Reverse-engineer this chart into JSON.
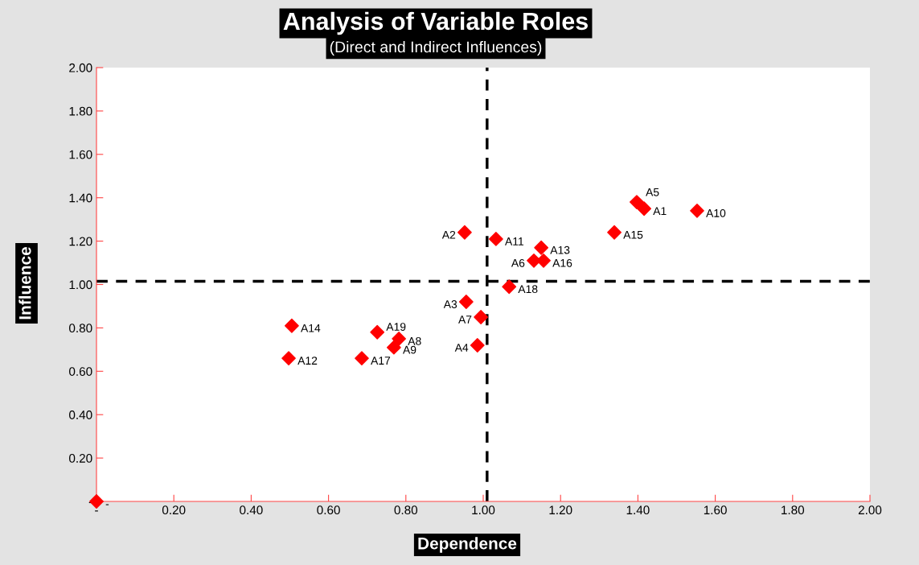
{
  "chart_data": {
    "type": "scatter",
    "title": "Analysis of Variable Roles",
    "subtitle": "(Direct and Indirect Influences)",
    "xlabel": "Dependence",
    "ylabel": "Influence",
    "x": [
      1.397,
      1.416,
      1.553,
      1.339,
      0.952,
      1.033,
      1.15,
      1.131,
      1.156,
      1.067,
      0.956,
      0.994,
      0.985,
      0.505,
      0.497,
      0.726,
      0.782,
      0.769,
      0.686,
      0
    ],
    "series": [
      {
        "color": "#ff0000",
        "values": [
          1.38,
          1.35,
          1.34,
          1.24,
          1.24,
          1.21,
          1.17,
          1.11,
          1.11,
          0.99,
          0.92,
          0.85,
          0.72,
          0.81,
          0.66,
          0.78,
          0.75,
          0.71,
          0.66,
          0
        ],
        "value_labels": [
          "A5",
          "A1",
          "A10",
          "A15",
          "A2",
          "A11",
          "A13",
          "A6",
          "A16",
          "A18",
          "A3",
          "A7",
          "A4",
          "A14",
          "A12",
          "A19",
          "A8",
          "A9",
          "A17",
          "-"
        ]
      }
    ],
    "marker": "diamond",
    "grid": false,
    "legend": false,
    "xlim": [
      0,
      2
    ],
    "ylim": [
      0,
      2
    ],
    "xticks": [
      {
        "value": 0,
        "label": "-"
      },
      {
        "value": 0.2,
        "label": "0.20"
      },
      {
        "value": 0.4,
        "label": "0.40"
      },
      {
        "value": 0.6,
        "label": "0.60"
      },
      {
        "value": 0.8,
        "label": "0.80"
      },
      {
        "value": 1.0,
        "label": "1.00"
      },
      {
        "value": 1.2,
        "label": "1.20"
      },
      {
        "value": 1.4,
        "label": "1.40"
      },
      {
        "value": 1.6,
        "label": "1.60"
      },
      {
        "value": 1.8,
        "label": "1.80"
      },
      {
        "value": 2.0,
        "label": "2.00"
      }
    ],
    "yticks": [
      {
        "value": 0,
        "label": "-"
      },
      {
        "value": 0.2,
        "label": "0.20"
      },
      {
        "value": 0.4,
        "label": "0.40"
      },
      {
        "value": 0.6,
        "label": "0.60"
      },
      {
        "value": 0.8,
        "label": "0.80"
      },
      {
        "value": 1.0,
        "label": "1.00"
      },
      {
        "value": 1.2,
        "label": "1.20"
      },
      {
        "value": 1.4,
        "label": "1.40"
      },
      {
        "value": 1.6,
        "label": "1.60"
      },
      {
        "value": 1.8,
        "label": "1.80"
      },
      {
        "value": 2.0,
        "label": "2.00"
      }
    ],
    "ref_lines": [
      {
        "axis": "x",
        "value": 1.01,
        "color": "#000000",
        "line_style": "dashed"
      },
      {
        "axis": "y",
        "value": 1.015,
        "color": "#000000",
        "line_style": "dashed"
      }
    ]
  }
}
